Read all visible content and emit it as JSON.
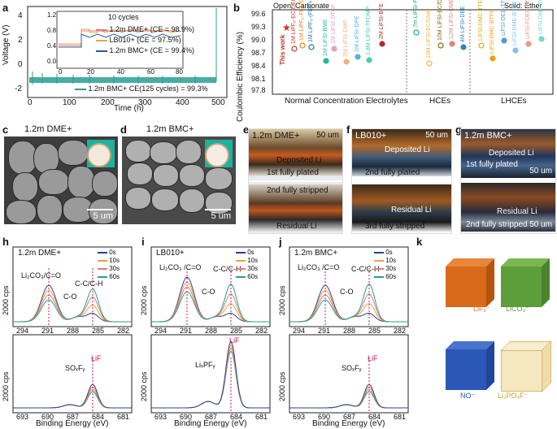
{
  "panels": {
    "a": {
      "label": "a",
      "ylabel": "Voltage (V)",
      "xlabel": "Time (h)",
      "yticks": [
        "4",
        "2",
        "0",
        "-2"
      ],
      "xticks": [
        "0",
        "100",
        "200",
        "300",
        "400",
        "500"
      ],
      "inset": {
        "title": "10 cycles",
        "yticks": [
          "1.2",
          "0.8",
          "0.4",
          "0.0"
        ],
        "xticks": [
          "0",
          "20",
          "40",
          "60",
          "80"
        ],
        "legend": [
          "1.2m DME+ (CE = 98.9%)",
          "LB010+ (CE = 97.5%)",
          "1.2m BMC+ (CE = 99.4%)"
        ]
      },
      "bottom_legend": "1.2m BMC+ CE(125 cycles) = 99.3%"
    },
    "b": {
      "label": "b",
      "top_left": "Open: Carbonate",
      "top_right": "Solid: Ether",
      "ylabel": "Coulombic Efficiency (%)",
      "yticks": [
        "99.6",
        "99.3",
        "99.0",
        "98.7",
        "98.4",
        "98.1",
        "97.8"
      ],
      "this_work": "This work",
      "groups": [
        "Normal Concentration Electrolytes",
        "HCEs",
        "LHCEs"
      ],
      "points": [
        {
          "label": "1M LiPF₆-EC/DEC",
          "color": "#c0392b",
          "open": true
        },
        {
          "label": "1M LiPF₆-FEC/DTC",
          "color": "#e67e22",
          "open": true
        },
        {
          "label": "1M LiPF₆-(FEC+DPOB)",
          "color": "#2471a3",
          "open": true
        },
        {
          "label": "1M LiFSI-BME",
          "color": "#1abc9c",
          "open": false
        },
        {
          "label": "1M LiFSI-DTOF",
          "color": "#e6a0c0",
          "open": false
        },
        {
          "label": "2M LiFSI-DMP",
          "color": "#f0b27a",
          "open": false
        },
        {
          "label": "1M LiFSI-DPE",
          "color": "#5dade2",
          "open": false
        },
        {
          "label": "1.8M LiFSI-TFDMP",
          "color": "#48c9b0",
          "open": false
        },
        {
          "label": "2M LiFSI-BFE",
          "color": "#a93226",
          "open": false
        },
        {
          "label": "7m LiFSI-FEC",
          "color": "#17a589",
          "open": true
        },
        {
          "label": "10M LiFSI-EC/DMC",
          "color": "#f5b041",
          "open": true
        },
        {
          "label": "10M LiFSI-EC/DC",
          "color": "#7d6608",
          "open": true
        },
        {
          "label": "12M LiFSI-DME",
          "color": "#d98880",
          "open": false
        },
        {
          "label": "4M LiFSI-DEE",
          "color": "#2e86c1",
          "open": false
        },
        {
          "label": "LiFSI-DMC-TTE",
          "color": "#d4ac0d",
          "open": true
        },
        {
          "label": "LiFSI-DMC-BTFE",
          "color": "#f39c12",
          "open": false
        },
        {
          "label": "LiFSI-DEE-TTE",
          "color": "#5499c7",
          "open": false
        },
        {
          "label": "LiFSI-DME-BTFE",
          "color": "#85c1e9",
          "open": false
        },
        {
          "label": "LiFSI-FDEE-TTE",
          "color": "#f1948a",
          "open": false
        },
        {
          "label": "LiFSI-DME-TFEO",
          "color": "#76d7c4",
          "open": false
        }
      ]
    },
    "c": {
      "label": "c",
      "title": "1.2m DME+",
      "scale": "5 um"
    },
    "d": {
      "label": "d",
      "title": "1.2m BMC+",
      "scale": "5 um"
    },
    "e": {
      "label": "e",
      "title": "1.2m DME+",
      "scale": "50 um",
      "top_text": "Deposited Li",
      "top_sub": "1st fully plated",
      "bot_sub": "2nd fully stripped",
      "bot_text": "Residual Li"
    },
    "f": {
      "label": "f",
      "title": "LB010+",
      "scale": "50 um",
      "top_text": "Deposited Li",
      "top_sub": "2nd fully plated",
      "bot_text": "Residual Li",
      "bot_sub": "3rd fully stripped"
    },
    "g": {
      "label": "g",
      "title": "1.2m BMC+",
      "scale": "50 um",
      "top_text": "Deposited Li",
      "top_sub": "1st fully plated",
      "bot_text": "Residual Li",
      "bot_sub": "2nd fully stripped"
    },
    "h": {
      "label": "h",
      "title": "1.2m DME+",
      "ann_top": "Li₂CO₃/C=O",
      "ann_cc": "C-C/C-H",
      "ann_co": "C-O",
      "ann_so": "SOₓFᵧ",
      "ann_lif": "LiF"
    },
    "i": {
      "label": "i",
      "title": "LB010+",
      "ann_top": "Li₂CO₃ /C=O",
      "ann_cc": "C-C/C-H",
      "ann_co": "C-O",
      "ann_lipf": "LiₓPFᵧ",
      "ann_lif": "LiF"
    },
    "j": {
      "label": "j",
      "title": "1.2m BMC+",
      "ann_top": "Li₂CO₃ /C=O",
      "ann_cc": "C-C/C-H",
      "ann_co": "C-O",
      "ann_so": "SOₓFᵧ",
      "ann_lif": "LiF"
    },
    "k": {
      "label": "k",
      "cubes": [
        "LiF₂⁻",
        "LiCO₃⁻",
        "NO⁻",
        "Li₂PO₄F⁻"
      ]
    }
  },
  "xps": {
    "cps": "2000 cps",
    "legend": [
      "0s",
      "10s",
      "30s",
      "60s"
    ],
    "colors": [
      "#2c3e8f",
      "#e5a53b",
      "#e07b7b",
      "#2a9d8f"
    ],
    "c1s_ticks": [
      "294",
      "291",
      "288",
      "285",
      "282"
    ],
    "f1s_ticks": [
      "693",
      "690",
      "687",
      "684",
      "681"
    ],
    "xlabel": "Binding Energy (eV)"
  },
  "colors": {
    "dme": "#e07b7b",
    "lb": "#e5a53b",
    "bmc": "#2a9d8f"
  }
}
